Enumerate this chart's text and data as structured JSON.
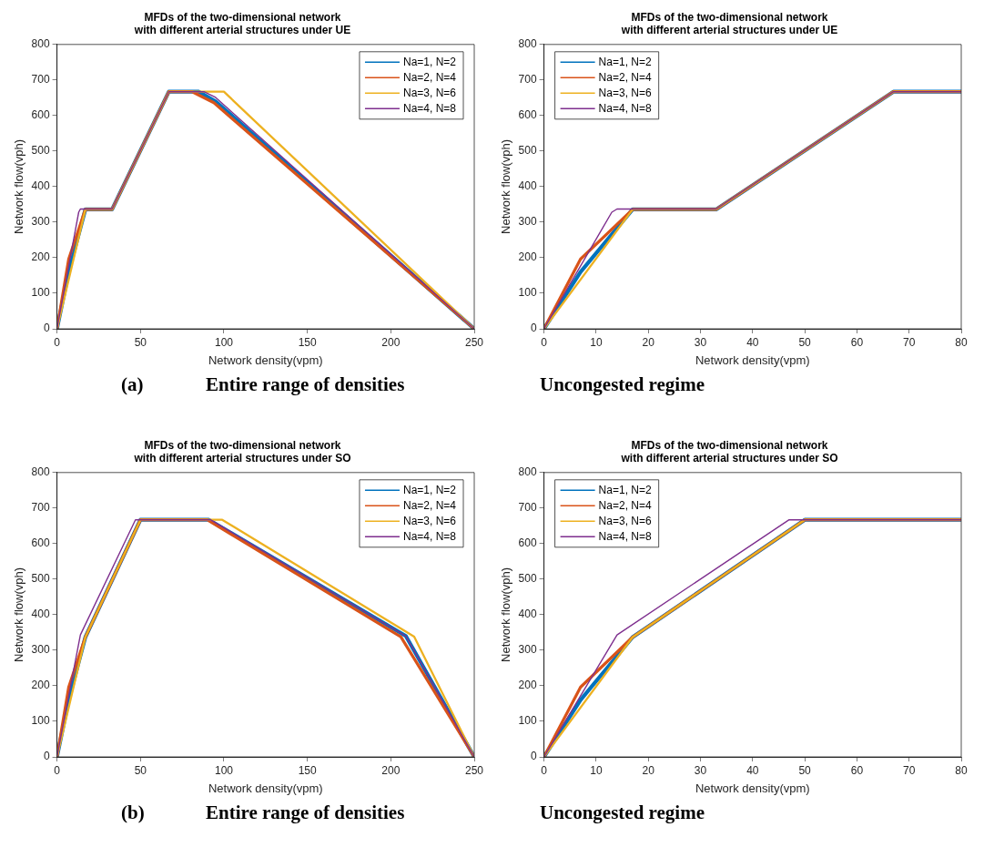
{
  "chart_data": [
    {
      "type": "line",
      "title": "MFDs of the two-dimensional network\nwith different arterial structures under UE",
      "xlabel": "Network density(vpm)",
      "ylabel": "Network flow(vph)",
      "xlim": [
        0,
        250
      ],
      "xticks": [
        0,
        50,
        100,
        150,
        200,
        250
      ],
      "ylim": [
        0,
        800
      ],
      "yticks": [
        0,
        100,
        200,
        300,
        400,
        500,
        600,
        700,
        800
      ],
      "grid": false,
      "legend": "top right",
      "annotations": [
        "(a)",
        "Entire range of densities"
      ],
      "series": [
        {
          "name": "Na=1, N=2",
          "color": "#0072bd",
          "x": [
            0,
            7,
            17,
            33,
            67,
            85,
            95,
            250
          ],
          "values": [
            0,
            160,
            336,
            336,
            667,
            667,
            640,
            0
          ]
        },
        {
          "name": "Na=2, N=4",
          "color": "#d95319",
          "x": [
            0,
            7,
            17,
            33,
            67,
            81,
            94,
            250
          ],
          "values": [
            0,
            196,
            336,
            336,
            667,
            667,
            636,
            0
          ]
        },
        {
          "name": "Na=3, N=6",
          "color": "#edb120",
          "x": [
            0,
            17,
            33,
            67,
            100,
            250
          ],
          "values": [
            0,
            336,
            336,
            667,
            667,
            0
          ]
        },
        {
          "name": "Na=4, N=8",
          "color": "#7e2f8e",
          "x": [
            0,
            13,
            14,
            33,
            67,
            88,
            95,
            250
          ],
          "values": [
            0,
            328,
            337,
            337,
            667,
            667,
            651,
            0
          ]
        }
      ]
    },
    {
      "type": "line",
      "title": "MFDs of the two-dimensional network\nwith different arterial structures under UE",
      "xlabel": "Network density(vpm)",
      "ylabel": "Network flow(vph)",
      "xlim": [
        0,
        80
      ],
      "xticks": [
        0,
        10,
        20,
        30,
        40,
        50,
        60,
        70,
        80
      ],
      "ylim": [
        0,
        800
      ],
      "yticks": [
        0,
        100,
        200,
        300,
        400,
        500,
        600,
        700,
        800
      ],
      "grid": false,
      "legend": "top left",
      "annotations": [
        "Uncongested regime"
      ],
      "series": [
        {
          "name": "Na=1, N=2",
          "color": "#0072bd",
          "x": [
            0,
            7,
            17,
            33,
            67,
            80
          ],
          "values": [
            0,
            160,
            336,
            336,
            667,
            667
          ]
        },
        {
          "name": "Na=2, N=4",
          "color": "#d95319",
          "x": [
            0,
            7,
            17,
            33,
            67,
            80
          ],
          "values": [
            0,
            196,
            336,
            336,
            667,
            667
          ]
        },
        {
          "name": "Na=3, N=6",
          "color": "#edb120",
          "x": [
            0,
            17,
            33,
            67,
            80
          ],
          "values": [
            0,
            336,
            336,
            667,
            667
          ]
        },
        {
          "name": "Na=4, N=8",
          "color": "#7e2f8e",
          "x": [
            0,
            13,
            14,
            33,
            67,
            80
          ],
          "values": [
            0,
            328,
            337,
            337,
            667,
            667
          ]
        }
      ]
    },
    {
      "type": "line",
      "title": "MFDs of the two-dimensional network\nwith different arterial structures under SO",
      "xlabel": "Network density(vpm)",
      "ylabel": "Network flow(vph)",
      "xlim": [
        0,
        250
      ],
      "xticks": [
        0,
        50,
        100,
        150,
        200,
        250
      ],
      "ylim": [
        0,
        800
      ],
      "yticks": [
        0,
        100,
        200,
        300,
        400,
        500,
        600,
        700,
        800
      ],
      "grid": false,
      "legend": "top right",
      "annotations": [
        "(b)",
        "Entire range of densities"
      ],
      "series": [
        {
          "name": "Na=1, N=2",
          "color": "#0072bd",
          "x": [
            0,
            7,
            17,
            50,
            91,
            209,
            250
          ],
          "values": [
            0,
            160,
            337,
            667,
            667,
            340,
            0
          ]
        },
        {
          "name": "Na=2, N=4",
          "color": "#d95319",
          "x": [
            0,
            7,
            17,
            50,
            90,
            206,
            250
          ],
          "values": [
            0,
            196,
            337,
            667,
            667,
            338,
            0
          ]
        },
        {
          "name": "Na=3, N=6",
          "color": "#edb120",
          "x": [
            0,
            17,
            50,
            99,
            214,
            250
          ],
          "values": [
            0,
            337,
            667,
            667,
            338,
            0
          ]
        },
        {
          "name": "Na=4, N=8",
          "color": "#7e2f8e",
          "x": [
            0,
            14,
            47,
            92,
            209,
            250
          ],
          "values": [
            0,
            343,
            667,
            667,
            340,
            0
          ]
        }
      ]
    },
    {
      "type": "line",
      "title": "MFDs of the two-dimensional network\nwith different arterial structures under SO",
      "xlabel": "Network density(vpm)",
      "ylabel": "Network flow(vph)",
      "xlim": [
        0,
        80
      ],
      "xticks": [
        0,
        10,
        20,
        30,
        40,
        50,
        60,
        70,
        80
      ],
      "ylim": [
        0,
        800
      ],
      "yticks": [
        0,
        100,
        200,
        300,
        400,
        500,
        600,
        700,
        800
      ],
      "grid": false,
      "legend": "top left",
      "annotations": [
        "Uncongested regime"
      ],
      "series": [
        {
          "name": "Na=1, N=2",
          "color": "#0072bd",
          "x": [
            0,
            7,
            17,
            50,
            80
          ],
          "values": [
            0,
            160,
            337,
            667,
            667
          ]
        },
        {
          "name": "Na=2, N=4",
          "color": "#d95319",
          "x": [
            0,
            7,
            17,
            50,
            80
          ],
          "values": [
            0,
            196,
            337,
            667,
            667
          ]
        },
        {
          "name": "Na=3, N=6",
          "color": "#edb120",
          "x": [
            0,
            17,
            50,
            80
          ],
          "values": [
            0,
            337,
            667,
            667
          ]
        },
        {
          "name": "Na=4, N=8",
          "color": "#7e2f8e",
          "x": [
            0,
            14,
            47,
            80
          ],
          "values": [
            0,
            343,
            667,
            667
          ]
        }
      ]
    }
  ]
}
